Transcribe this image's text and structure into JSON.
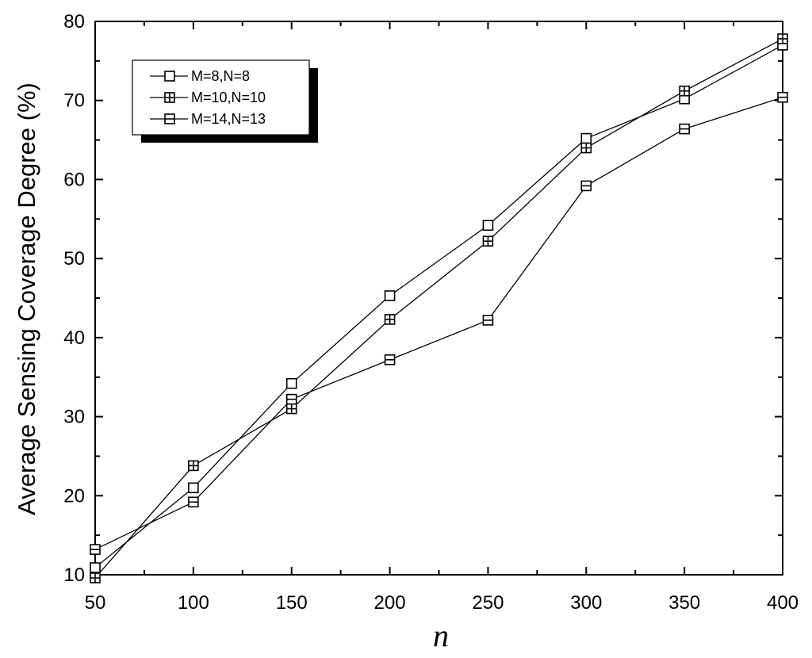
{
  "chart_data": {
    "type": "line",
    "title": "",
    "xlabel": "n",
    "ylabel": "Average Sensing Coverage Degree (%)",
    "xlim": [
      50,
      400
    ],
    "ylim": [
      10,
      80
    ],
    "x_ticks": [
      50,
      100,
      150,
      200,
      250,
      300,
      350,
      400
    ],
    "y_ticks": [
      10,
      20,
      30,
      40,
      50,
      60,
      70,
      80
    ],
    "x_tick_labels": [
      "50",
      "100",
      "150",
      "200",
      "250",
      "300",
      "350",
      "400"
    ],
    "y_tick_labels": [
      "10",
      "20",
      "30",
      "40",
      "50",
      "60",
      "70",
      "80"
    ],
    "grid": false,
    "legend_position": "top-left",
    "x": [
      50,
      100,
      150,
      200,
      250,
      300,
      350,
      400
    ],
    "series": [
      {
        "name": "M=8,N=8",
        "marker": "square",
        "values": [
          10.9,
          21.0,
          34.2,
          45.3,
          54.2,
          65.2,
          70.2,
          77.0
        ]
      },
      {
        "name": "M=10,N=10",
        "marker": "square-cross",
        "values": [
          9.6,
          23.8,
          31.0,
          42.3,
          52.2,
          64.0,
          71.2,
          77.8
        ]
      },
      {
        "name": "M=14,N=13",
        "marker": "square-hline",
        "values": [
          13.2,
          19.2,
          32.2,
          37.2,
          42.2,
          59.2,
          66.4,
          70.4
        ]
      }
    ]
  }
}
